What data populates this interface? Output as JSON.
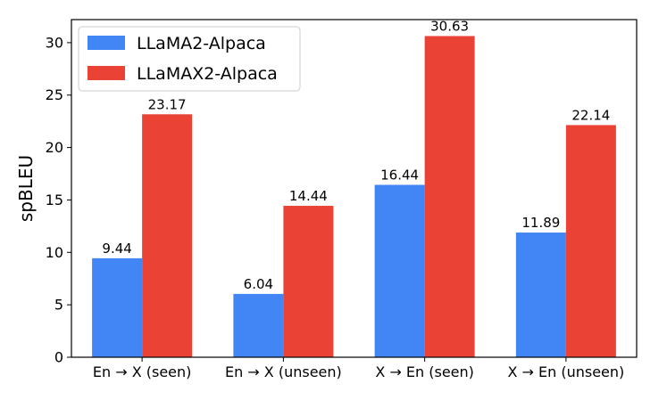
{
  "chart_data": {
    "type": "bar",
    "title": "",
    "xlabel": "",
    "ylabel": "spBLEU",
    "categories": [
      "En → X (seen)",
      "En → X (unseen)",
      "X → En (seen)",
      "X → En (unseen)"
    ],
    "series": [
      {
        "name": "LLaMA2-Alpaca",
        "color": "#4285f4",
        "values": [
          9.44,
          6.04,
          16.44,
          11.89
        ]
      },
      {
        "name": "LLaMAX2-Alpaca",
        "color": "#ea4335",
        "values": [
          23.17,
          14.44,
          30.63,
          22.14
        ]
      }
    ],
    "data_labels": [
      [
        "9.44",
        "6.04",
        "16.44",
        "11.89"
      ],
      [
        "23.17",
        "14.44",
        "30.63",
        "22.14"
      ]
    ],
    "ylim": [
      0,
      32.2
    ],
    "yticks": [
      0,
      5,
      10,
      15,
      20,
      25,
      30
    ],
    "grid": false,
    "legend_position": "top-left"
  }
}
